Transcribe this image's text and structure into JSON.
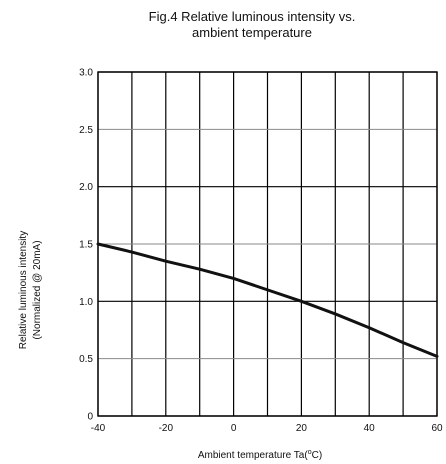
{
  "chart_data": {
    "type": "line",
    "title_lines": [
      "Fig.4 Relative luminous intensity vs.",
      "ambient temperature"
    ],
    "xlabel_parts": {
      "prefix": "Ambient temperature Ta(",
      "degree": "o",
      "suffix": "C)"
    },
    "ylabel_lines": [
      "Relative luminous intensity",
      "(Normalized @ 20mA)"
    ],
    "xlim": [
      -40,
      60
    ],
    "ylim": [
      0,
      3.0
    ],
    "x_ticks": [
      -40,
      -20,
      0,
      20,
      40,
      60
    ],
    "x_tick_labels": [
      "-40",
      "-20",
      "0",
      "20",
      "40",
      "60"
    ],
    "x_minor_grid": [
      -30,
      -10,
      10,
      30,
      50
    ],
    "y_ticks": [
      0,
      0.5,
      1.0,
      1.5,
      2.0,
      2.5,
      3.0
    ],
    "y_tick_labels": [
      "0",
      "0.5",
      "1.0",
      "1.5",
      "2.0",
      "2.5",
      "3.0"
    ],
    "grid": true,
    "series": [
      {
        "x": [
          -40,
          -30,
          -20,
          -10,
          0,
          10,
          20,
          30,
          40,
          50,
          60
        ],
        "y": [
          1.5,
          1.43,
          1.35,
          1.28,
          1.2,
          1.1,
          1.0,
          0.89,
          0.77,
          0.64,
          0.52
        ]
      }
    ],
    "colors": {
      "line": "#111111",
      "major_grid": "#000000",
      "minor_grid": "#000000",
      "frame": "#000000"
    }
  }
}
